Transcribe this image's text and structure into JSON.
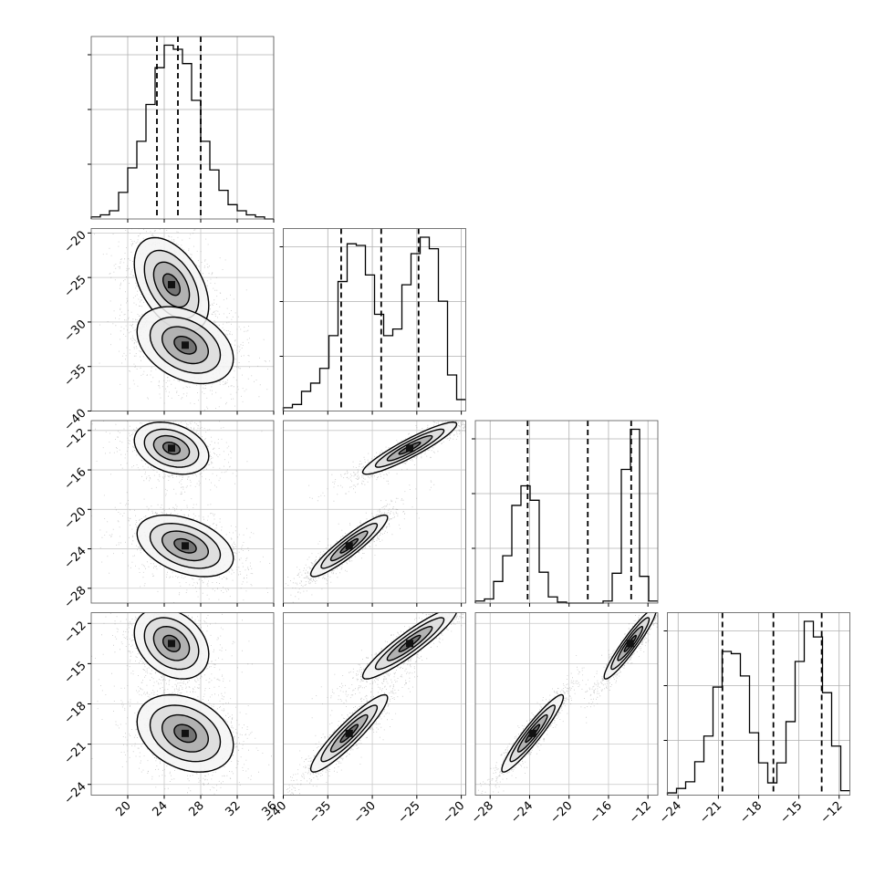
{
  "chart_data": {
    "type": "corner",
    "parameters": [
      {
        "name": "",
        "range": [
          16,
          36
        ],
        "ticks": [
          20,
          24,
          28,
          32,
          36
        ],
        "tick_labels": [
          "20",
          "24",
          "28",
          "32",
          "36"
        ],
        "quantiles": [
          23.2,
          25.5,
          28.0
        ]
      },
      {
        "name": "",
        "range": [
          -40,
          -19.5
        ],
        "ticks": [
          -40,
          -35,
          -30,
          -25,
          -20
        ],
        "tick_labels": [
          "−40",
          "−35",
          "−30",
          "−25",
          "−20"
        ],
        "quantiles": [
          -33.5,
          -29.0,
          -24.8
        ]
      },
      {
        "name": "",
        "range": [
          -29.5,
          -11
        ],
        "ticks": [
          -28,
          -24,
          -20,
          -16,
          -12
        ],
        "tick_labels": [
          "−28",
          "−24",
          "−20",
          "−16",
          "−12"
        ],
        "quantiles": [
          -24.2,
          -18.1,
          -13.7
        ]
      },
      {
        "name": "",
        "range": [
          -24.8,
          -11.2
        ],
        "ticks": [
          -24,
          -21,
          -18,
          -15,
          -12
        ],
        "tick_labels": [
          "−24",
          "−21",
          "−18",
          "−15",
          "−12"
        ],
        "quantiles": [
          -20.7,
          -16.9,
          -13.3
        ]
      }
    ],
    "histograms": [
      {
        "param": 0,
        "edges_start": 16,
        "bin_width": 1,
        "counts": [
          1,
          2,
          4,
          13,
          25,
          38,
          56,
          74,
          85,
          83,
          76,
          58,
          38,
          24,
          14,
          7,
          4,
          2,
          1,
          0
        ]
      },
      {
        "param": 1,
        "edges_start": -40,
        "bin_width": 1.025,
        "counts": [
          2,
          4,
          12,
          17,
          26,
          46,
          79,
          102,
          101,
          83,
          59,
          46,
          50,
          77,
          96,
          106,
          99,
          67,
          22,
          7
        ]
      },
      {
        "param": 2,
        "edges_start": -29.5,
        "bin_width": 0.925,
        "counts": [
          2,
          4,
          21,
          46,
          95,
          114,
          100,
          30,
          6,
          1,
          0,
          0,
          0,
          0,
          2,
          29,
          130,
          169,
          26,
          2
        ]
      },
      {
        "param": 3,
        "edges_start": -24.8,
        "bin_width": 0.68,
        "counts": [
          2,
          6,
          12,
          30,
          53,
          97,
          129,
          127,
          107,
          56,
          29,
          11,
          29,
          66,
          120,
          156,
          142,
          92,
          44,
          4
        ]
      }
    ],
    "clusters": [
      {
        "mean": [
          24.8,
          -25.8,
          -13.8,
          -13.5
        ],
        "sd": [
          1.7,
          2.2,
          1.1,
          1.1
        ]
      },
      {
        "mean": [
          26.3,
          -32.6,
          -23.7,
          -20.2
        ],
        "sd": [
          2.2,
          1.8,
          1.3,
          1.2
        ]
      }
    ],
    "grid": true
  }
}
